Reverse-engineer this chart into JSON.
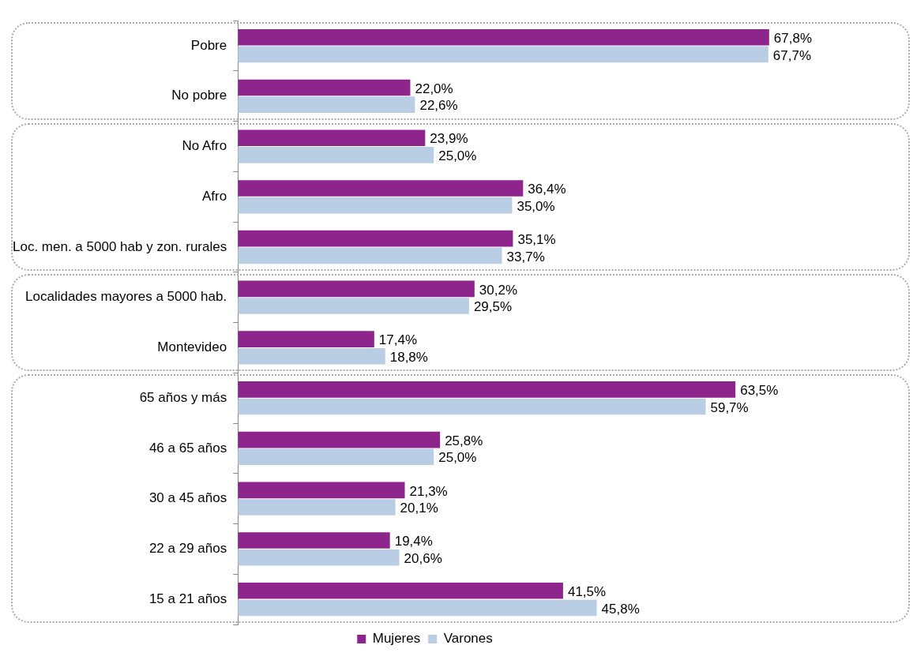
{
  "chart_data": {
    "type": "bar",
    "orientation": "horizontal",
    "tick_labels": "y",
    "grid": false,
    "legend": "bottom",
    "categories": [
      "Pobre",
      "No pobre",
      "No Afro",
      "Afro",
      "Loc. men. a 5000 hab y zon. rurales",
      "Localidades mayores a 5000 hab.",
      "Montevideo",
      "65 años y más",
      "46 a 65 años",
      "30 a 45 años",
      "22 a 29 años",
      "15 a 21 años"
    ],
    "series": [
      {
        "name": "Mujeres",
        "color": "#8e258d",
        "values": [
          67.8,
          22.0,
          23.9,
          36.4,
          35.1,
          30.2,
          17.4,
          63.5,
          25.8,
          21.3,
          19.4,
          41.5
        ],
        "value_labels": [
          "67,8%",
          "22,0%",
          "23,9%",
          "36,4%",
          "35,1%",
          "30,2%",
          "17,4%",
          "63,5%",
          "25,8%",
          "21,3%",
          "19,4%",
          "41,5%"
        ]
      },
      {
        "name": "Varones",
        "color": "#b9cde5",
        "values": [
          67.7,
          22.6,
          25.0,
          35.0,
          33.7,
          29.5,
          18.8,
          59.7,
          25.0,
          20.1,
          20.6,
          45.8
        ],
        "value_labels": [
          "67,7%",
          "22,6%",
          "25,0%",
          "35,0%",
          "33,7%",
          "29,5%",
          "18,8%",
          "59,7%",
          "25,0%",
          "20,1%",
          "20,6%",
          "45,8%"
        ]
      }
    ]
  }
}
